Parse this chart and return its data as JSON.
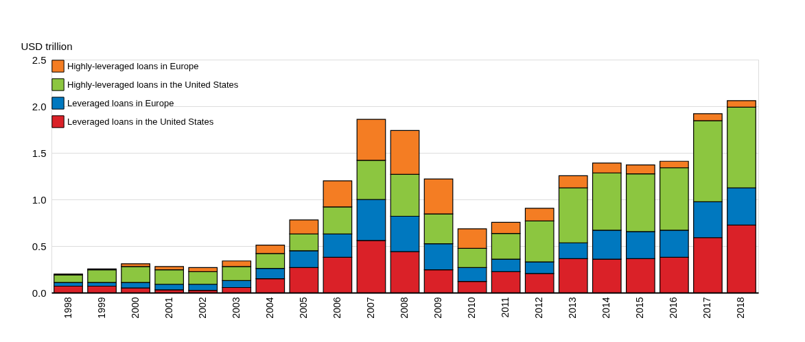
{
  "chart_data": {
    "type": "bar",
    "stacked": true,
    "ylabel": "USD trillion",
    "categories": [
      "1998",
      "1999",
      "2000",
      "2001",
      "2002",
      "2003",
      "2004",
      "2005",
      "2006",
      "2007",
      "2008",
      "2009",
      "2010",
      "2011",
      "2012",
      "2013",
      "2014",
      "2015",
      "2016",
      "2017",
      "2018"
    ],
    "ylim": [
      0,
      2.5
    ],
    "yticks": [
      {
        "value": 0,
        "label": "0.0"
      },
      0.5,
      {
        "value": 1,
        "label": "1.0"
      },
      1.5,
      {
        "value": 2,
        "label": "2.0"
      },
      2.5
    ],
    "grid": "y",
    "legend": "top left",
    "series": [
      {
        "name": "Leveraged loans in the United States",
        "color": "#da2128",
        "values": [
          0.07,
          0.07,
          0.05,
          0.03,
          0.025,
          0.055,
          0.15,
          0.27,
          0.38,
          0.56,
          0.44,
          0.245,
          0.12,
          0.225,
          0.205,
          0.365,
          0.36,
          0.365,
          0.38,
          0.59,
          0.725
        ]
      },
      {
        "name": "Leveraged loans in Europe",
        "color": "#0078bf",
        "values": [
          0.04,
          0.04,
          0.06,
          0.06,
          0.065,
          0.075,
          0.11,
          0.18,
          0.25,
          0.44,
          0.38,
          0.28,
          0.15,
          0.135,
          0.125,
          0.17,
          0.31,
          0.29,
          0.29,
          0.385,
          0.4
        ]
      },
      {
        "name": "Highly-leveraged loans in the United States",
        "color": "#8cc640",
        "values": [
          0.08,
          0.135,
          0.17,
          0.155,
          0.135,
          0.15,
          0.16,
          0.18,
          0.29,
          0.42,
          0.45,
          0.32,
          0.205,
          0.275,
          0.44,
          0.59,
          0.615,
          0.62,
          0.67,
          0.87,
          0.865
        ]
      },
      {
        "name": "Highly-leveraged loans in Europe",
        "color": "#f47d23",
        "values": [
          0.01,
          0.01,
          0.03,
          0.035,
          0.045,
          0.06,
          0.09,
          0.15,
          0.28,
          0.44,
          0.47,
          0.375,
          0.21,
          0.12,
          0.135,
          0.13,
          0.105,
          0.095,
          0.07,
          0.075,
          0.07
        ]
      }
    ]
  }
}
